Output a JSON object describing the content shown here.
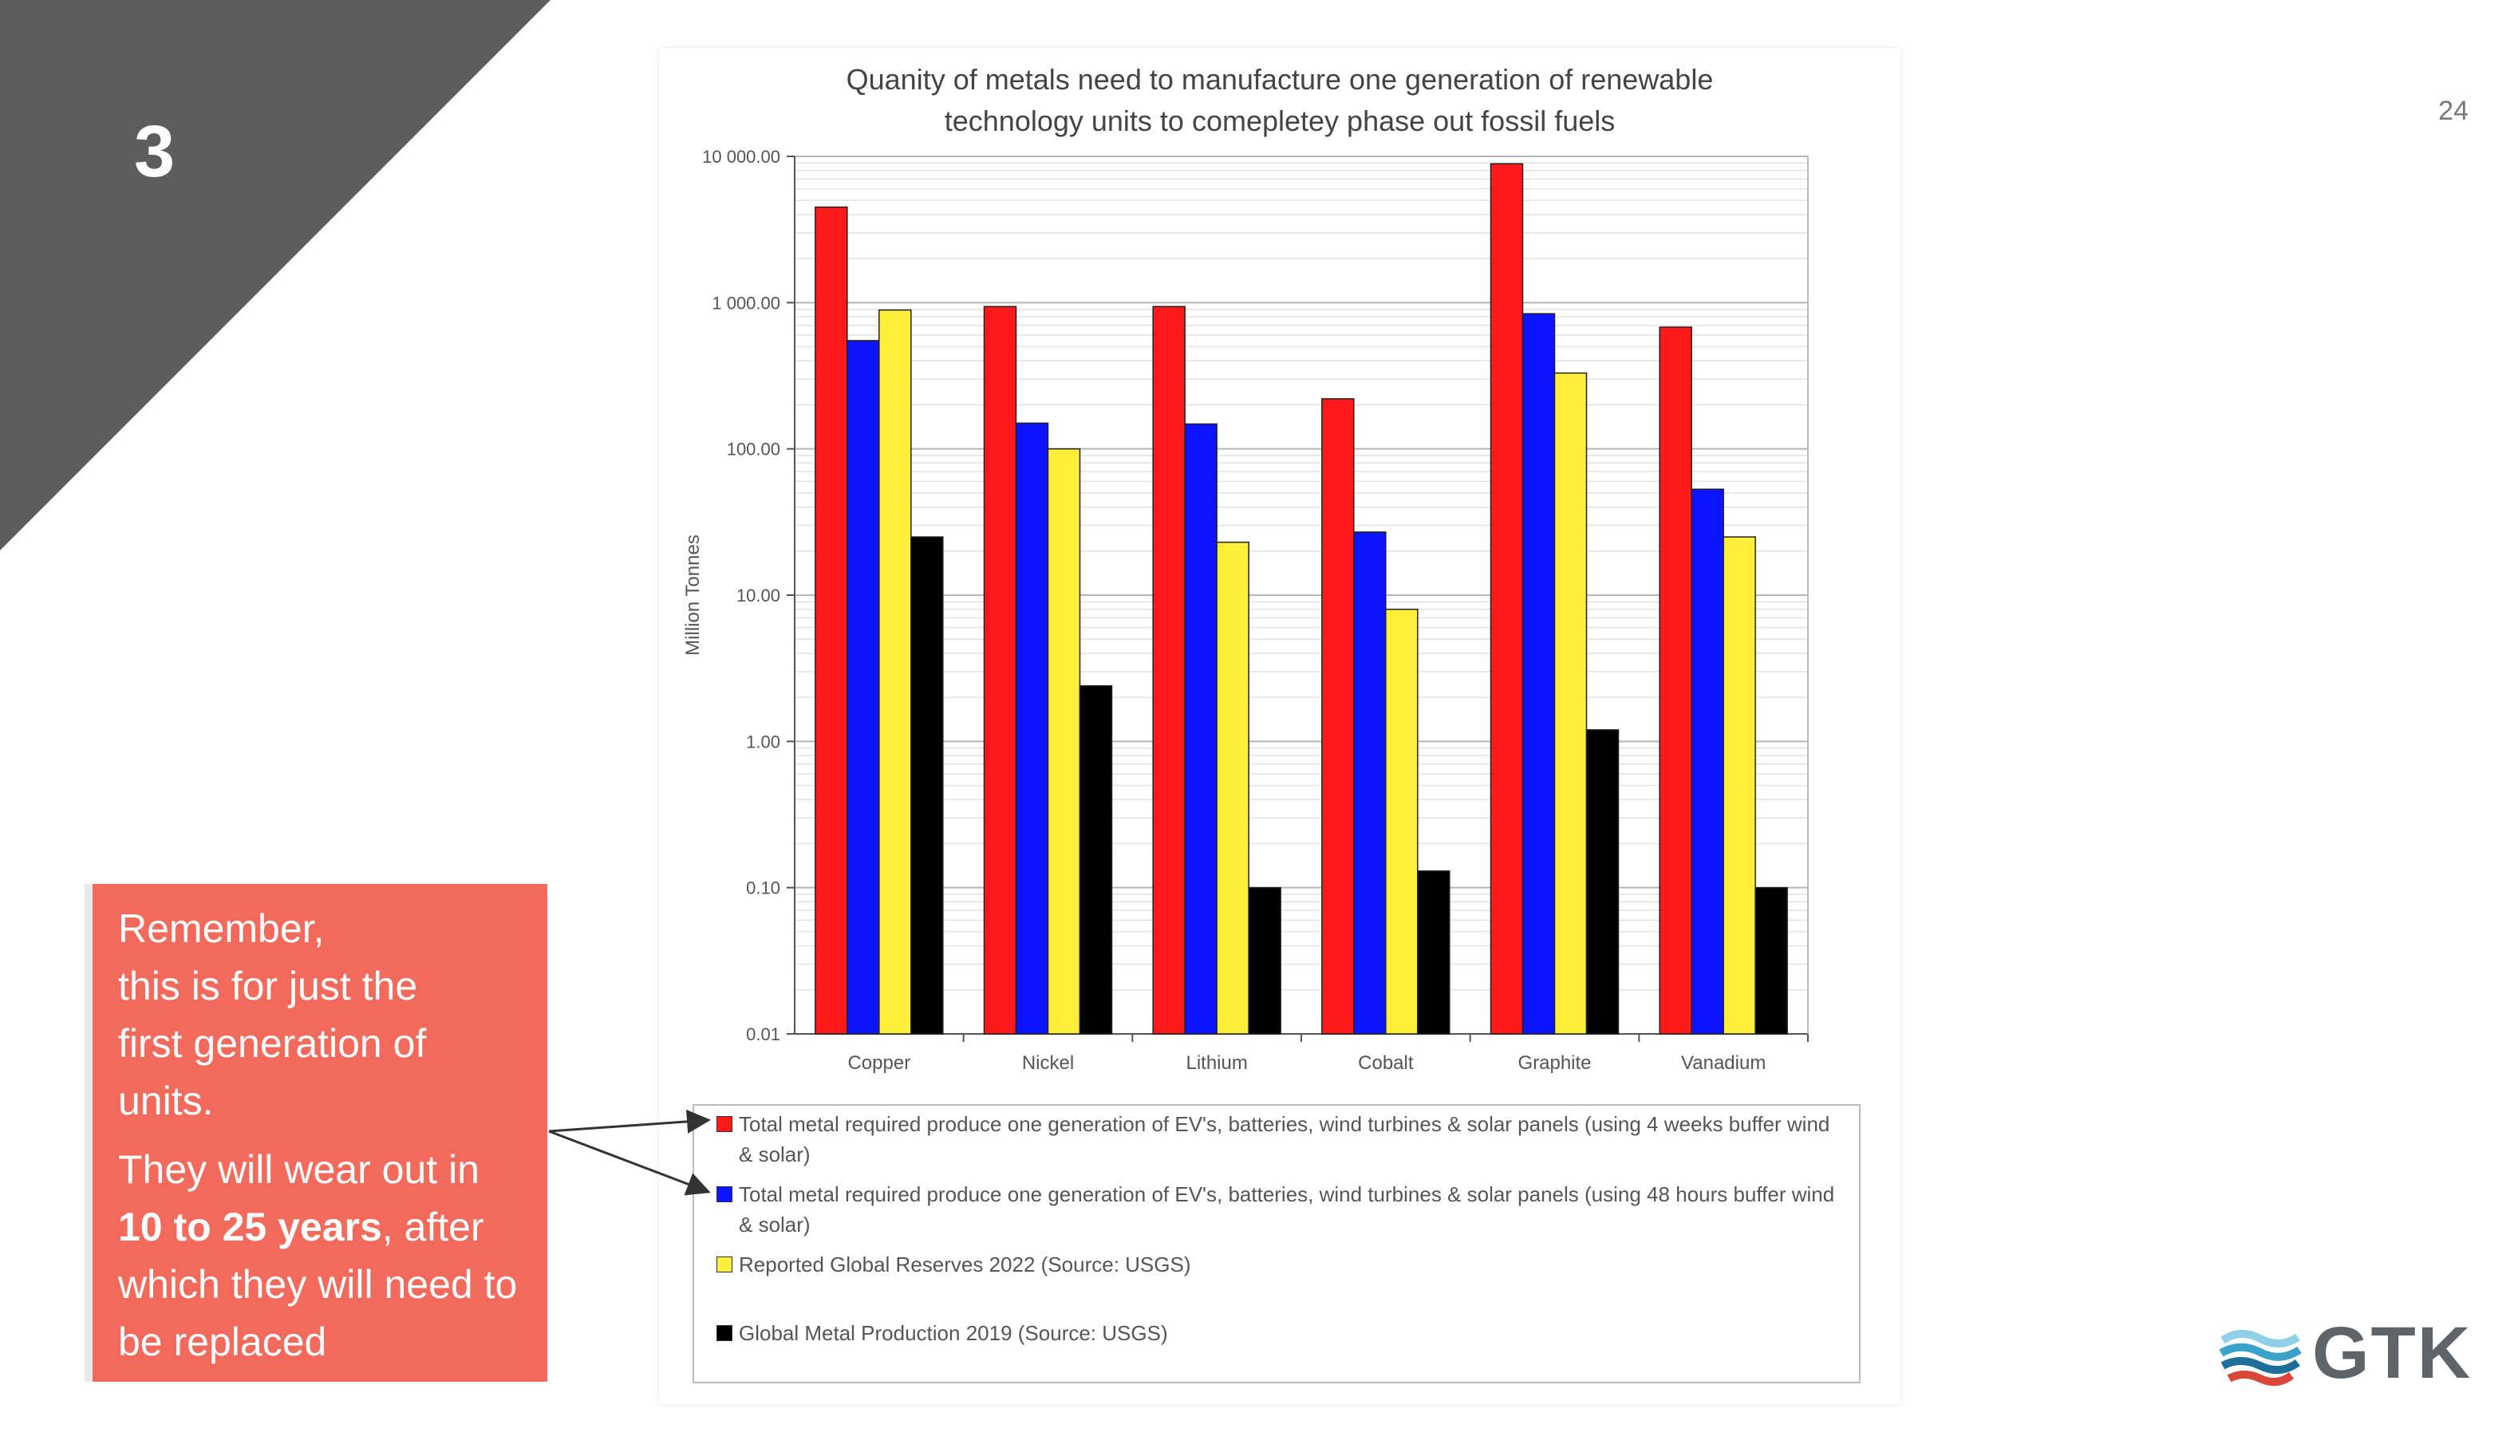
{
  "slide": {
    "number": "3",
    "page_number": "24",
    "corner_color": "#5d5d5d"
  },
  "callout": {
    "lines_1": [
      "Remember,",
      "this is for just the",
      "first generation of",
      "units."
    ],
    "p2_before": "They will wear out in",
    "p2_bold": "10 to 25 years",
    "p2_after": ", after which they will need to be replaced",
    "color": "#f26a5b"
  },
  "logo": {
    "text": "GTK",
    "icon": "gtk-wave-icon"
  },
  "chart_data": {
    "type": "bar",
    "title": [
      "Quanity of metals need to manufacture one generation of renewable",
      "technology units to comepletey phase out fossil fuels"
    ],
    "ylabel": "Million Tonnes",
    "yscale": "log",
    "ylim": [
      0.01,
      10000
    ],
    "yticks": [
      "0.01",
      "0.10",
      "1.00",
      "10.00",
      "100.00",
      "1 000.00",
      "10 000.00"
    ],
    "grid": true,
    "categories": [
      "Copper",
      "Nickel",
      "Lithium",
      "Cobalt",
      "Graphite",
      "Vanadium"
    ],
    "series": [
      {
        "name": "Total metal required produce one generation of EV's, batteries, wind turbines & solar panels (using 4 weeks buffer wind & solar)",
        "color": "#ff1a1a",
        "values": [
          4500,
          940,
          940,
          220,
          8900,
          680
        ]
      },
      {
        "name": "Total metal required produce one generation of EV's, batteries, wind turbines & solar panels (using 48 hours buffer wind & solar)",
        "color": "#0a14ff",
        "values": [
          550,
          150,
          148,
          27,
          840,
          53
        ]
      },
      {
        "name": "Reported Global Reserves 2022 (Source: USGS)",
        "color": "#ffef3a",
        "values": [
          890,
          100,
          23,
          8,
          330,
          25
        ]
      },
      {
        "name": "Global Metal Production 2019 (Source: USGS)",
        "color": "#000000",
        "values": [
          25,
          2.4,
          0.1,
          0.13,
          1.2,
          0.1
        ]
      }
    ],
    "legend_position": "bottom"
  }
}
